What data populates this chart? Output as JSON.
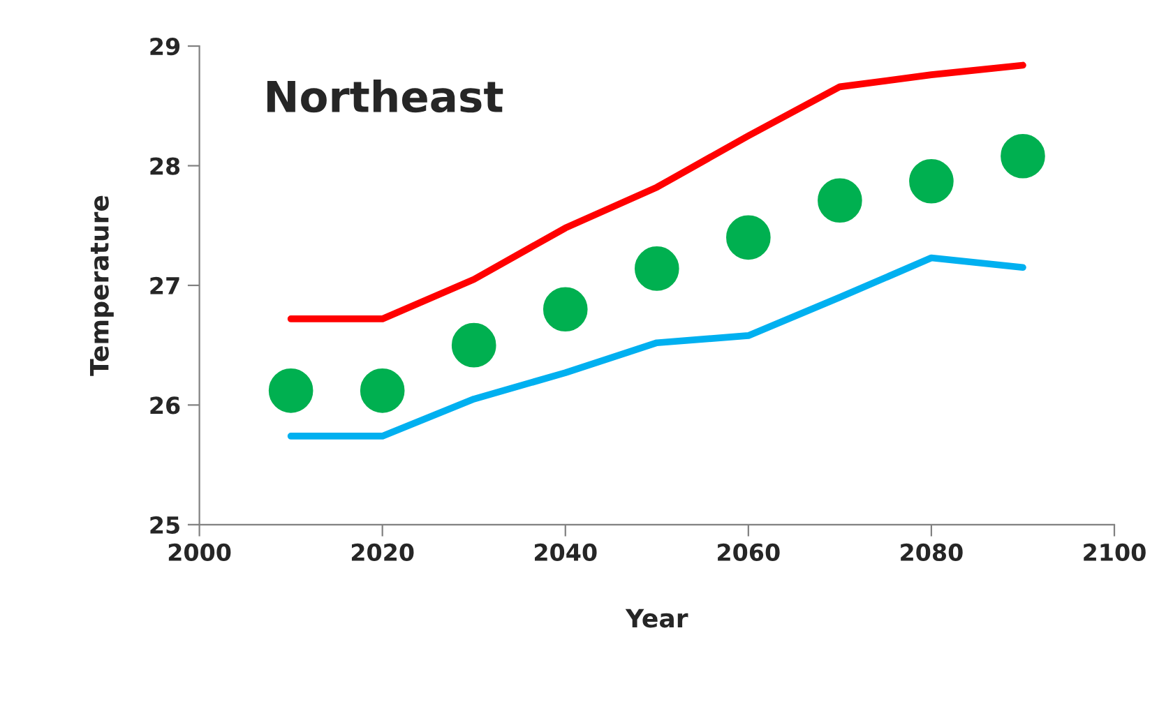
{
  "chart_data": {
    "type": "line",
    "title": "Northeast",
    "xlabel": "Year",
    "ylabel": "Temperature",
    "x": [
      2010,
      2020,
      2030,
      2040,
      2050,
      2060,
      2070,
      2080,
      2090
    ],
    "series": [
      {
        "color": "#ff0000",
        "values": [
          26.72,
          26.72,
          27.05,
          27.48,
          27.82,
          28.25,
          28.66,
          28.76,
          28.84
        ]
      },
      {
        "type": "scatter",
        "color": "#00b050",
        "marker": "circle",
        "values": [
          26.12,
          26.12,
          26.5,
          26.8,
          27.14,
          27.4,
          27.71,
          27.87,
          28.08
        ]
      },
      {
        "color": "#00b0f0",
        "values": [
          25.74,
          25.74,
          26.05,
          26.27,
          26.52,
          26.58,
          26.9,
          27.23,
          27.15
        ]
      }
    ],
    "xlim": [
      2000,
      2100
    ],
    "xticks": [
      2000,
      2020,
      2040,
      2060,
      2080,
      2100
    ],
    "ylim": [
      25,
      29
    ],
    "yticks": [
      25,
      26,
      27,
      28,
      29
    ],
    "grid": false
  }
}
